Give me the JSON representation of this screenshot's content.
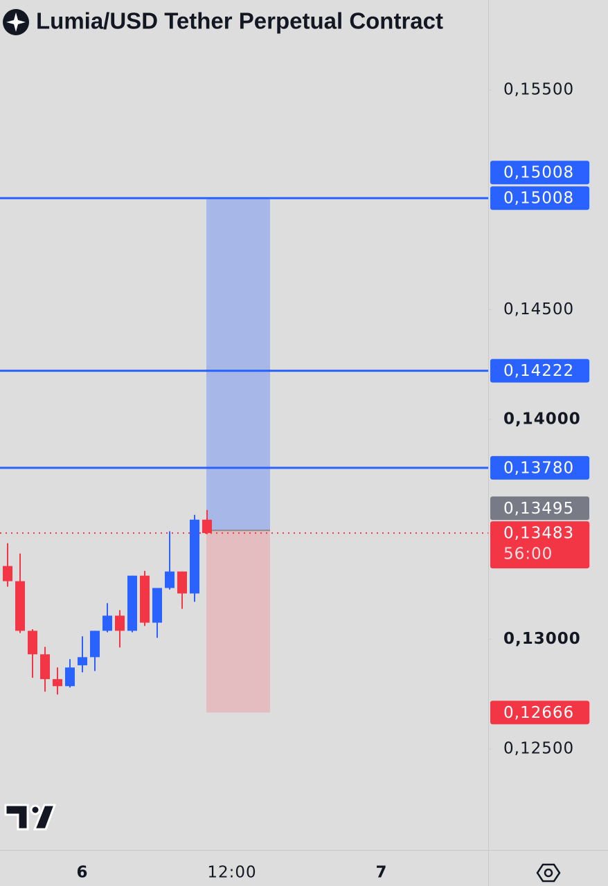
{
  "chart_data": {
    "type": "candlestick",
    "title": "Lumia/USD Tether Perpetual Contract",
    "categories": [
      null,
      null,
      null,
      null,
      null,
      null,
      "6",
      null,
      null,
      null,
      null,
      null,
      null,
      null,
      null,
      null,
      null,
      null,
      "12:00",
      null,
      null,
      null,
      null,
      null,
      null,
      null,
      null,
      null,
      null,
      null,
      "7",
      null,
      null,
      null,
      null,
      null,
      null,
      null,
      null
    ],
    "open": [
      0.13333,
      0.13264,
      0.13038,
      0.12931,
      0.12818,
      0.12786,
      0.12881,
      0.12918,
      0.13038,
      0.13107,
      0.13038,
      0.13289,
      0.13075,
      0.13233,
      0.13308,
      0.13208,
      0.13544,
      null,
      null,
      null,
      null,
      null,
      null,
      null,
      null,
      null,
      null,
      null,
      null,
      null,
      null,
      null,
      null,
      null,
      null,
      null,
      null,
      null,
      null
    ],
    "high": [
      0.13437,
      0.1339,
      0.13045,
      0.12965,
      0.12871,
      0.12909,
      0.13013,
      0.13038,
      0.13164,
      0.13132,
      0.13289,
      0.13311,
      0.13233,
      0.13491,
      0.13308,
      0.13566,
      0.13588,
      null,
      null,
      null,
      null,
      null,
      null,
      null,
      null,
      null,
      null,
      null,
      null,
      null,
      null,
      null,
      null,
      null,
      null,
      null,
      null,
      null,
      null
    ],
    "low": [
      0.13239,
      0.13028,
      0.12824,
      0.12761,
      0.12748,
      0.1278,
      0.12849,
      0.12855,
      0.13031,
      0.12962,
      0.13031,
      0.1306,
      0.13006,
      0.13226,
      0.13138,
      0.1317,
      0.13478,
      null,
      null,
      null,
      null,
      null,
      null,
      null,
      null,
      null,
      null,
      null,
      null,
      null,
      null,
      null,
      null,
      null,
      null,
      null,
      null,
      null,
      null
    ],
    "close": [
      0.13264,
      0.13038,
      0.12931,
      0.12818,
      0.12786,
      0.12871,
      0.12918,
      0.13038,
      0.13107,
      0.13038,
      0.13289,
      0.13075,
      0.13233,
      0.13308,
      0.13208,
      0.13544,
      0.13483,
      null,
      null,
      null,
      null,
      null,
      null,
      null,
      null,
      null,
      null,
      null,
      null,
      null,
      null,
      null,
      null,
      null,
      null,
      null,
      null,
      null,
      null
    ],
    "up_color": "#2962ff",
    "down_color": "#f23645",
    "ylim": [
      0.1204,
      0.1591
    ],
    "yticks": [
      {
        "value": 0.155,
        "label": "0,15500"
      },
      {
        "value": 0.145,
        "label": "0,14500"
      },
      {
        "value": 0.14,
        "label": "0,14000"
      },
      {
        "value": 0.13,
        "label": "0,13000"
      },
      {
        "value": 0.125,
        "label": "0,12500"
      }
    ],
    "price_lines": [
      0.15008,
      0.14222,
      0.1378
    ],
    "line_color": "#2962ff",
    "current_price": 0.13483,
    "position": {
      "entry": 0.13495,
      "target": 0.15008,
      "stop": 0.12666
    },
    "price_labels": [
      {
        "value": 0.15008,
        "label": "0,15008",
        "color": "#2962ff"
      },
      {
        "value": 0.15008,
        "label": "0,15008",
        "color": "#2962ff"
      },
      {
        "value": 0.14222,
        "label": "0,14222",
        "color": "#2962ff"
      },
      {
        "value": 0.1378,
        "label": "0,13780",
        "color": "#2962ff"
      },
      {
        "value": 0.13495,
        "label": "0,13495",
        "color": "#787b86"
      },
      {
        "value": 0.13483,
        "label": "0,13483",
        "color": "#f23645",
        "countdown": "56:00"
      },
      {
        "value": 0.12666,
        "label": "0,12666",
        "color": "#f23645"
      }
    ]
  }
}
